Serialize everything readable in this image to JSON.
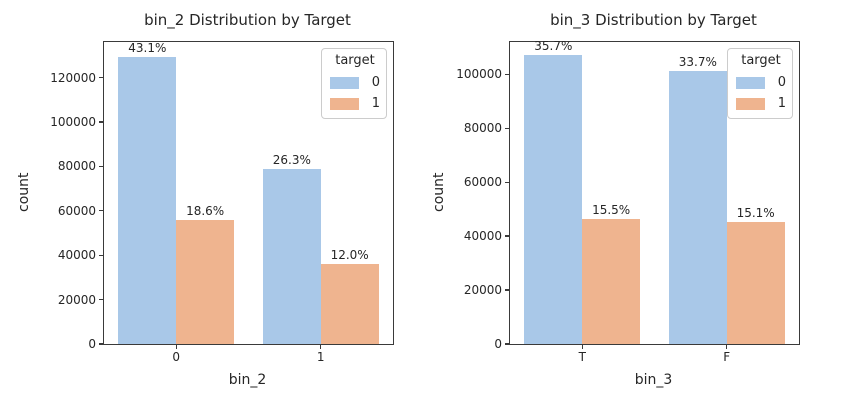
{
  "figure": {
    "background": "#ffffff",
    "text_color": "#262626",
    "spine_color": "#3a3a3a",
    "series_colors": {
      "target_0": "#a9c8e8",
      "target_1": "#efb48f"
    }
  },
  "chart_data": [
    {
      "type": "bar",
      "title": "bin_2 Distribution by Target",
      "xlabel": "bin_2",
      "ylabel": "count",
      "categories": [
        "0",
        "1"
      ],
      "series": [
        {
          "name": "0",
          "color": "#a9c8e8",
          "values": [
            129300,
            78900
          ],
          "bar_labels": [
            "43.1%",
            "26.3%"
          ]
        },
        {
          "name": "1",
          "color": "#efb48f",
          "values": [
            55800,
            36000
          ],
          "bar_labels": [
            "18.6%",
            "12.0%"
          ]
        }
      ],
      "ylim": [
        0,
        136000
      ],
      "yticks": [
        0,
        20000,
        40000,
        60000,
        80000,
        100000,
        120000
      ],
      "grid": false,
      "legend": {
        "title": "target",
        "entries": [
          "0",
          "1"
        ],
        "position": "upper right"
      }
    },
    {
      "type": "bar",
      "title": "bin_3 Distribution by Target",
      "xlabel": "bin_3",
      "ylabel": "count",
      "categories": [
        "T",
        "F"
      ],
      "series": [
        {
          "name": "0",
          "color": "#a9c8e8",
          "values": [
            107100,
            101100
          ],
          "bar_labels": [
            "35.7%",
            "33.7%"
          ]
        },
        {
          "name": "1",
          "color": "#efb48f",
          "values": [
            46500,
            45300
          ],
          "bar_labels": [
            "15.5%",
            "15.1%"
          ]
        }
      ],
      "ylim": [
        0,
        112000
      ],
      "yticks": [
        0,
        20000,
        40000,
        60000,
        80000,
        100000
      ],
      "grid": false,
      "legend": {
        "title": "target",
        "entries": [
          "0",
          "1"
        ],
        "position": "upper right"
      }
    }
  ]
}
